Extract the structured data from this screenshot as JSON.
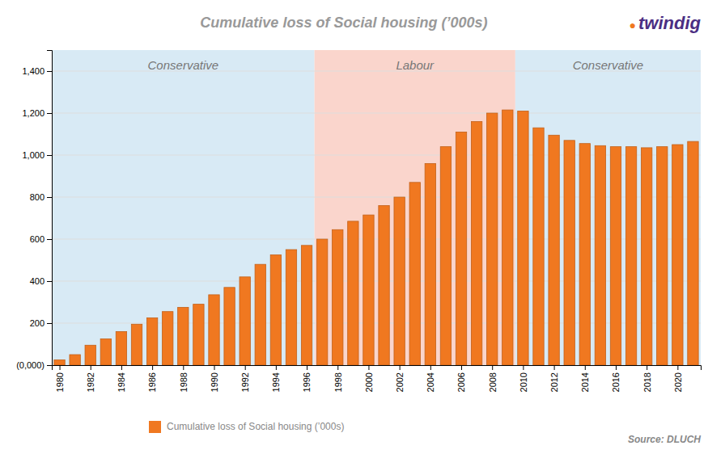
{
  "chart_data": {
    "type": "bar",
    "title": "Cumulative loss of Social housing (’000s)",
    "x": [
      1980,
      1981,
      1982,
      1983,
      1984,
      1985,
      1986,
      1987,
      1988,
      1989,
      1990,
      1991,
      1992,
      1993,
      1994,
      1995,
      1996,
      1997,
      1998,
      1999,
      2000,
      2001,
      2002,
      2003,
      2004,
      2005,
      2006,
      2007,
      2008,
      2009,
      2010,
      2011,
      2012,
      2013,
      2014,
      2015,
      2016,
      2017,
      2018,
      2019,
      2020,
      2021
    ],
    "series": [
      {
        "name": "Cumulative loss of Social housing (’000s)",
        "color": "#F07820",
        "values": [
          25,
          50,
          95,
          125,
          160,
          195,
          225,
          255,
          275,
          290,
          335,
          370,
          420,
          480,
          525,
          550,
          570,
          600,
          645,
          685,
          715,
          760,
          800,
          870,
          960,
          1040,
          1110,
          1160,
          1200,
          1215,
          1210,
          1130,
          1095,
          1070,
          1055,
          1045,
          1040,
          1040,
          1035,
          1040,
          1050,
          1065
        ]
      }
    ],
    "xlim": [
      1979.5,
      2021.5
    ],
    "xticks": [
      1980,
      1982,
      1984,
      1986,
      1988,
      1990,
      1992,
      1994,
      1996,
      1998,
      2000,
      2002,
      2004,
      2006,
      2008,
      2010,
      2012,
      2014,
      2016,
      2018,
      2020
    ],
    "ylim": [
      0,
      1500
    ],
    "yticks": [
      {
        "value": 0,
        "label": "(0,000)"
      },
      200,
      400,
      600,
      800,
      {
        "value": 1000,
        "label": "1,000"
      },
      {
        "value": 1200,
        "label": "1,200"
      },
      {
        "value": 1400,
        "label": "1,400"
      }
    ],
    "grid": true,
    "legend": "bottom",
    "annotations": [
      {
        "text": "Conservative",
        "x0": 1979.5,
        "x1": 1996.5,
        "color": "#D8EAF5"
      },
      {
        "text": "Labour",
        "x0": 1996.5,
        "x1": 2009.5,
        "color": "#FAD5CC"
      },
      {
        "text": "Conservative",
        "x0": 2009.5,
        "x1": 2021.5,
        "color": "#D8EAF5"
      },
      {
        "text": "twindig",
        "color": "#4B2E83"
      },
      {
        "text": "●",
        "color": "#F07820"
      },
      {
        "text": "Source: DLUCH"
      }
    ]
  }
}
